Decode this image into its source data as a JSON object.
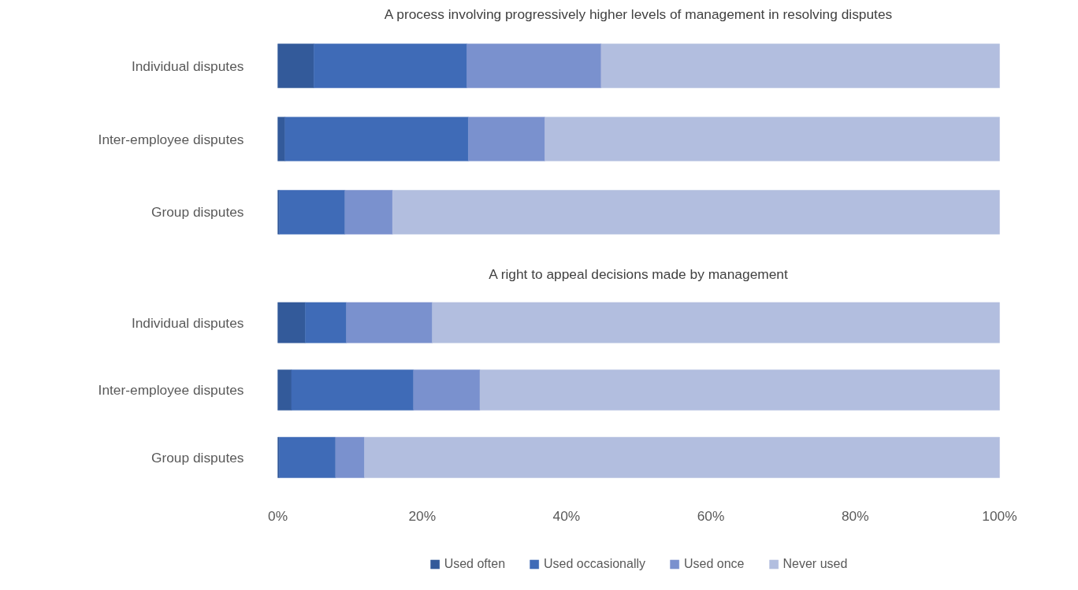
{
  "chart_data": [
    {
      "type": "bar",
      "orientation": "horizontal",
      "stacked": true,
      "title": "A process involving progressively higher levels of management in resolving disputes",
      "categories": [
        "Individual disputes",
        "Inter-employee disputes",
        "Group disputes"
      ],
      "xlim": [
        0,
        100
      ],
      "tick_labels": "y",
      "grid": false,
      "legend": false,
      "series": [
        {
          "color": "#335a9a",
          "values": [
            5.0,
            1.0,
            0.2
          ]
        },
        {
          "color": "#3f6bb7",
          "values": [
            21.2,
            25.4,
            9.1
          ]
        },
        {
          "color": "#7a91ce",
          "values": [
            18.6,
            10.6,
            6.6
          ]
        },
        {
          "color": "#b2bedf",
          "values": [
            55.2,
            63.0,
            84.1
          ]
        }
      ]
    },
    {
      "type": "bar",
      "orientation": "horizontal",
      "stacked": true,
      "title": "A right to appeal decisions made by management",
      "categories": [
        "Individual disputes",
        "Inter-employee disputes",
        "Group disputes"
      ],
      "xlim": [
        0,
        100
      ],
      "xticks": [
        {
          "value": 0,
          "label": "0%"
        },
        {
          "value": 20,
          "label": "20%"
        },
        {
          "value": 40,
          "label": "40%"
        },
        {
          "value": 60,
          "label": "60%"
        },
        {
          "value": 80,
          "label": "80%"
        },
        {
          "value": 100,
          "label": "100%"
        }
      ],
      "grid": false,
      "legend": "bottom",
      "series": [
        {
          "name": "Used often",
          "color": "#335a9a",
          "values": [
            3.8,
            1.9,
            0.2
          ]
        },
        {
          "name": "Used occasionally",
          "color": "#3f6bb7",
          "values": [
            5.7,
            16.9,
            7.8
          ]
        },
        {
          "name": "Used once",
          "color": "#7a91ce",
          "values": [
            11.9,
            9.2,
            4.0
          ]
        },
        {
          "name": "Never used",
          "color": "#b2bedf",
          "values": [
            78.6,
            72.0,
            88.0
          ]
        }
      ]
    }
  ]
}
